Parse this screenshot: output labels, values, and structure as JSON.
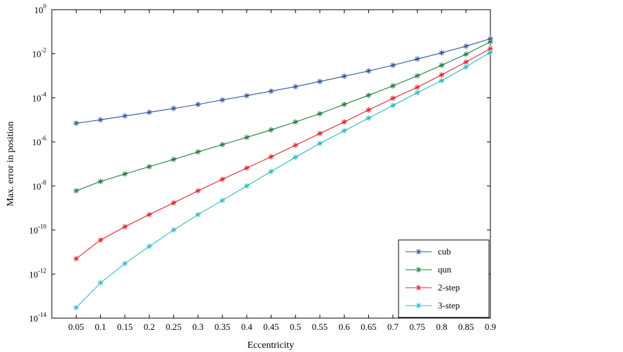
{
  "chart_data": {
    "type": "line",
    "title": "",
    "xlabel": "Eccentricity",
    "ylabel": "Max. error in position",
    "yscale": "log",
    "xlim": [
      0,
      0.9
    ],
    "ylim": [
      1e-14,
      1
    ],
    "x": [
      0.05,
      0.1,
      0.15,
      0.2,
      0.25,
      0.3,
      0.35,
      0.4,
      0.45,
      0.5,
      0.55,
      0.6,
      0.65,
      0.7,
      0.75,
      0.8,
      0.85,
      0.9
    ],
    "x_tick_labels": [
      "0.05",
      "0.1",
      "0.15",
      "0.2",
      "0.25",
      "0.3",
      "0.35",
      "0.4",
      "0.45",
      "0.5",
      "0.55",
      "0.6",
      "0.65",
      "0.7",
      "0.75",
      "0.8",
      "0.85",
      "0.9"
    ],
    "y_tick_labels": [
      {
        "base": "10",
        "exp": "0"
      },
      {
        "base": "10",
        "exp": "-2"
      },
      {
        "base": "10",
        "exp": "-4"
      },
      {
        "base": "10",
        "exp": "-6"
      },
      {
        "base": "10",
        "exp": "-8"
      },
      {
        "base": "10",
        "exp": "-10"
      },
      {
        "base": "10",
        "exp": "-12"
      },
      {
        "base": "10",
        "exp": "-14"
      }
    ],
    "grid": false,
    "legend_position": "bottom-right",
    "marker": "asterisk",
    "series": [
      {
        "name": "cub",
        "color": "#2e4fa0",
        "values": [
          7e-06,
          1e-05,
          1.5e-05,
          2.2e-05,
          3.3e-05,
          5e-05,
          8e-05,
          0.000125,
          0.0002,
          0.00032,
          0.00055,
          0.00095,
          0.00165,
          0.003,
          0.0058,
          0.011,
          0.022,
          0.048
        ]
      },
      {
        "name": "qun",
        "color": "#1f7a3c",
        "values": [
          6e-09,
          1.6e-08,
          3.5e-08,
          7.5e-08,
          1.6e-07,
          3.5e-07,
          7.5e-07,
          1.6e-06,
          3.5e-06,
          8e-06,
          1.9e-05,
          5e-05,
          0.00013,
          0.00035,
          0.001,
          0.003,
          0.0095,
          0.035
        ]
      },
      {
        "name": "2-step",
        "color": "#e0202a",
        "values": [
          5e-12,
          3.5e-11,
          1.4e-10,
          5e-10,
          1.7e-09,
          6e-09,
          2e-08,
          6.5e-08,
          2.1e-07,
          7e-07,
          2.4e-06,
          8e-06,
          2.8e-05,
          9.5e-05,
          0.0003,
          0.0011,
          0.0042,
          0.017
        ]
      },
      {
        "name": "3-step",
        "color": "#2ab8c0",
        "values": [
          3e-14,
          4e-13,
          3e-12,
          1.8e-11,
          1e-10,
          5e-10,
          2.2e-09,
          1e-08,
          4.5e-08,
          2e-07,
          8.5e-07,
          3.2e-06,
          1.2e-05,
          4.5e-05,
          0.00017,
          0.0006,
          0.0025,
          0.012
        ]
      }
    ]
  }
}
